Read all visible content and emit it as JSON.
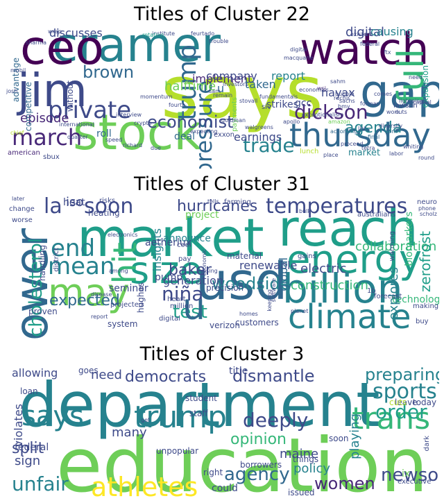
{
  "palette": {
    "c1": "#440154",
    "c2": "#482878",
    "c3": "#3e4a89",
    "c4": "#31688e",
    "c5": "#26828e",
    "c6": "#1f9e89",
    "c7": "#35b779",
    "c8": "#6ece58",
    "c9": "#b5de2b",
    "c10": "#fde725"
  },
  "panels": [
    {
      "title": "Titles of Cluster 22",
      "words": [
        {
          "t": "says",
          "c": "c9"
        },
        {
          "t": "cramer",
          "c": "c5"
        },
        {
          "t": "stock",
          "c": "c8"
        },
        {
          "t": "ceo",
          "c": "c1"
        },
        {
          "t": "watch",
          "c": "c1"
        },
        {
          "t": "jim",
          "c": "c3"
        },
        {
          "t": "gap",
          "c": "c4"
        },
        {
          "t": "thursday",
          "c": "c4"
        },
        {
          "t": "full",
          "c": "c7"
        },
        {
          "t": "march",
          "c": "c2"
        },
        {
          "t": "trump",
          "c": "c4"
        },
        {
          "t": "pressure",
          "c": "c4"
        },
        {
          "t": "private",
          "c": "c3"
        },
        {
          "t": "dickson",
          "c": "c2"
        },
        {
          "t": "trade",
          "c": "c5"
        },
        {
          "t": "economist",
          "c": "c3"
        },
        {
          "t": "brown",
          "c": "c4"
        },
        {
          "t": "discusses",
          "c": "c3"
        },
        {
          "t": "digital",
          "c": "c3"
        },
        {
          "t": "causing",
          "c": "c5"
        },
        {
          "t": "agenda",
          "c": "c5"
        },
        {
          "t": "episode",
          "c": "c2"
        },
        {
          "t": "halftime",
          "c": "c8"
        },
        {
          "t": "report",
          "c": "c5"
        },
        {
          "t": "implement",
          "c": "c2"
        },
        {
          "t": "company",
          "c": "c3"
        },
        {
          "t": "taken",
          "c": "c4"
        },
        {
          "t": "earnings",
          "c": "c3"
        },
        {
          "t": "roll",
          "c": "c4"
        },
        {
          "t": "deal",
          "c": "c4"
        },
        {
          "t": "nayax",
          "c": "c3"
        },
        {
          "t": "gcc",
          "c": "c3"
        },
        {
          "t": "strikes",
          "c": "c3"
        },
        {
          "t": "market",
          "c": "c5"
        },
        {
          "t": "competitive",
          "c": "c4"
        },
        {
          "t": "advantage",
          "c": "c4"
        },
        {
          "t": "without",
          "c": "c3"
        },
        {
          "t": "expansion",
          "c": "c6"
        },
        {
          "t": "payments",
          "c": "c8"
        },
        {
          "t": "sachs",
          "c": "c3"
        },
        {
          "t": "according",
          "c": "c4"
        },
        {
          "t": "final",
          "c": "c4"
        },
        {
          "t": "com",
          "c": "c4"
        },
        {
          "t": "u",
          "c": "c4"
        },
        {
          "t": "wsj",
          "c": "c2"
        },
        {
          "t": "slv",
          "c": "c3"
        },
        {
          "t": "bmy",
          "c": "c3"
        },
        {
          "t": "american",
          "c": "c2"
        },
        {
          "t": "sbux",
          "c": "c3"
        },
        {
          "t": "quarter",
          "c": "c3"
        },
        {
          "t": "exxon",
          "c": "c3"
        },
        {
          "t": "expecting",
          "c": "c3"
        },
        {
          "t": "lunch",
          "c": "c9"
        },
        {
          "t": "place",
          "c": "c3"
        },
        {
          "t": "diversify",
          "c": "c3"
        },
        {
          "t": "whiting",
          "c": "c3"
        },
        {
          "t": "wrap",
          "c": "c3"
        },
        {
          "t": "sharma",
          "c": "c3"
        },
        {
          "t": "josh",
          "c": "c3"
        },
        {
          "t": "mobil",
          "c": "c3"
        },
        {
          "t": "chief",
          "c": "c9"
        },
        {
          "t": "international",
          "c": "c3"
        },
        {
          "t": "interview",
          "c": "c3"
        },
        {
          "t": "speed",
          "c": "c3"
        },
        {
          "t": "richard",
          "c": "c3"
        },
        {
          "t": "due",
          "c": "c3"
        },
        {
          "t": "goldman",
          "c": "c3"
        },
        {
          "t": "momentum",
          "c": "c3"
        },
        {
          "t": "fourth",
          "c": "c3"
        },
        {
          "t": "remain",
          "c": "c3"
        },
        {
          "t": "feurtado",
          "c": "c3"
        },
        {
          "t": "institute",
          "c": "c3"
        },
        {
          "t": "rotation",
          "c": "c6"
        },
        {
          "t": "trouble",
          "c": "c3"
        },
        {
          "t": "stovall",
          "c": "c3"
        },
        {
          "t": "sam",
          "c": "c3"
        },
        {
          "t": "investors",
          "c": "c3"
        },
        {
          "t": "macquarie",
          "c": "c3"
        },
        {
          "t": "digital",
          "c": "c3"
        },
        {
          "t": "economics",
          "c": "c3"
        },
        {
          "t": "bubble",
          "c": "c3"
        },
        {
          "t": "ruchir",
          "c": "c3"
        },
        {
          "t": "sahm",
          "c": "c3"
        },
        {
          "t": "federal",
          "c": "c3"
        },
        {
          "t": "existent",
          "c": "c3"
        },
        {
          "t": "apollo",
          "c": "c3"
        },
        {
          "t": "exceptionalism",
          "c": "c3"
        },
        {
          "t": "amazon",
          "c": "c8"
        },
        {
          "t": "list",
          "c": "c3"
        },
        {
          "t": "forman",
          "c": "c3"
        },
        {
          "t": "capital",
          "c": "c3"
        },
        {
          "t": "lawson",
          "c": "c3"
        },
        {
          "t": "work",
          "c": "c3"
        },
        {
          "t": "cuts",
          "c": "c3"
        },
        {
          "t": "comes",
          "c": "c3"
        },
        {
          "t": "fundamentals",
          "c": "c3"
        },
        {
          "t": "crypto",
          "c": "c3"
        },
        {
          "t": "walgreens",
          "c": "c3"
        },
        {
          "t": "tetra",
          "c": "c3"
        },
        {
          "t": "round",
          "c": "c3"
        },
        {
          "t": "proceed",
          "c": "c3"
        },
        {
          "t": "labor",
          "c": "c3"
        },
        {
          "t": "lightning",
          "c": "c3"
        },
        {
          "t": "need",
          "c": "c3"
        },
        {
          "t": "ftx",
          "c": "c3"
        },
        {
          "t": "china",
          "c": "c3"
        }
      ]
    },
    {
      "title": "Titles of Cluster 31",
      "words": [
        {
          "t": "market",
          "c": "c6"
        },
        {
          "t": "reach",
          "c": "c6"
        },
        {
          "t": "usd",
          "c": "c4"
        },
        {
          "t": "power",
          "c": "c4"
        },
        {
          "t": "energy",
          "c": "c6"
        },
        {
          "t": "billion",
          "c": "c5"
        },
        {
          "t": "climate",
          "c": "c5"
        },
        {
          "t": "size",
          "c": "c6"
        },
        {
          "t": "may",
          "c": "c8"
        },
        {
          "t": "hit",
          "c": "c7"
        },
        {
          "t": "temperatures",
          "c": "c3"
        },
        {
          "t": "soon",
          "c": "c3"
        },
        {
          "t": "la",
          "c": "c3"
        },
        {
          "t": "hurricanes",
          "c": "c3"
        },
        {
          "t": "end",
          "c": "c5"
        },
        {
          "t": "mean",
          "c": "c5"
        },
        {
          "t": "niña",
          "c": "c3"
        },
        {
          "t": "cholesterol",
          "c": "c6"
        },
        {
          "t": "expected",
          "c": "c4"
        },
        {
          "t": "test",
          "c": "c6"
        },
        {
          "t": "woodside",
          "c": "c5"
        },
        {
          "t": "baker",
          "c": "c3"
        },
        {
          "t": "u",
          "c": "c4"
        },
        {
          "t": "collaboration",
          "c": "c7"
        },
        {
          "t": "electric",
          "c": "c3"
        },
        {
          "t": "construction",
          "c": "c7"
        },
        {
          "t": "explores",
          "c": "c5"
        },
        {
          "t": "renewable",
          "c": "c3"
        },
        {
          "t": "material",
          "c": "c3"
        },
        {
          "t": "generation",
          "c": "c3"
        },
        {
          "t": "pump",
          "c": "c3"
        },
        {
          "t": "insights",
          "c": "c5"
        },
        {
          "t": "global",
          "c": "c4"
        },
        {
          "t": "announce",
          "c": "c5"
        },
        {
          "t": "heat",
          "c": "c3"
        },
        {
          "t": "project",
          "c": "c8"
        },
        {
          "t": "iso",
          "c": "c3"
        },
        {
          "t": "zerofrost",
          "c": "c6"
        },
        {
          "t": "biomarkers",
          "c": "c7"
        },
        {
          "t": "technology",
          "c": "c7"
        },
        {
          "t": "aetherlux",
          "c": "c3"
        },
        {
          "t": "seminar",
          "c": "c3"
        },
        {
          "t": "hughes",
          "c": "c3"
        },
        {
          "t": "precision",
          "c": "c3"
        },
        {
          "t": "proven",
          "c": "c3"
        },
        {
          "t": "system",
          "c": "c3"
        },
        {
          "t": "digital",
          "c": "c3"
        },
        {
          "t": "verizon",
          "c": "c3"
        },
        {
          "t": "customers",
          "c": "c3"
        },
        {
          "t": "forecast",
          "c": "c3"
        },
        {
          "t": "making",
          "c": "c3"
        },
        {
          "t": "buy",
          "c": "c3"
        },
        {
          "t": "1b",
          "c": "c3"
        },
        {
          "t": "million",
          "c": "c3"
        },
        {
          "t": "projected",
          "c": "c3"
        },
        {
          "t": "heart",
          "c": "c3"
        },
        {
          "t": "handling",
          "c": "c3"
        },
        {
          "t": "district",
          "c": "c3"
        },
        {
          "t": "heating",
          "c": "c3"
        },
        {
          "t": "electronics",
          "c": "c3"
        },
        {
          "t": "risks",
          "c": "c3"
        },
        {
          "t": "later",
          "c": "c3"
        },
        {
          "t": "change",
          "c": "c3"
        },
        {
          "t": "worse",
          "c": "c3"
        },
        {
          "t": "tells",
          "c": "c3"
        },
        {
          "t": "farming",
          "c": "c3"
        },
        {
          "t": "bulk",
          "c": "c3"
        },
        {
          "t": "australians",
          "c": "c3"
        },
        {
          "t": "neuro",
          "c": "c3"
        },
        {
          "t": "phone",
          "c": "c3"
        },
        {
          "t": "scholz",
          "c": "c3"
        },
        {
          "t": "warming",
          "c": "c3"
        },
        {
          "t": "gains",
          "c": "c3"
        },
        {
          "t": "missing",
          "c": "c3"
        },
        {
          "t": "cool",
          "c": "c3"
        },
        {
          "t": "among",
          "c": "c3"
        },
        {
          "t": "pay",
          "c": "c3"
        },
        {
          "t": "disease",
          "c": "c3"
        },
        {
          "t": "report",
          "c": "c3"
        },
        {
          "t": "software",
          "c": "c3"
        },
        {
          "t": "planet",
          "c": "c3"
        },
        {
          "t": "homes",
          "c": "c3"
        },
        {
          "t": "keeping",
          "c": "c3"
        },
        {
          "t": "economic",
          "c": "c3"
        }
      ]
    },
    {
      "title": "Titles of Cluster 3",
      "words": [
        {
          "t": "education",
          "c": "c8"
        },
        {
          "t": "department",
          "c": "c5"
        },
        {
          "t": "trump",
          "c": "c5"
        },
        {
          "t": "says",
          "c": "c5"
        },
        {
          "t": "trans",
          "c": "c7"
        },
        {
          "t": "sports",
          "c": "c5"
        },
        {
          "t": "athletes",
          "c": "c10"
        },
        {
          "t": "agency",
          "c": "c4"
        },
        {
          "t": "women",
          "c": "c2"
        },
        {
          "t": "newsom",
          "c": "c3"
        },
        {
          "t": "unfair",
          "c": "c5"
        },
        {
          "t": "deeply",
          "c": "c3"
        },
        {
          "t": "order",
          "c": "c6"
        },
        {
          "t": "preparing",
          "c": "c5"
        },
        {
          "t": "democrats",
          "c": "c3"
        },
        {
          "t": "dismantle",
          "c": "c3"
        },
        {
          "t": "need",
          "c": "c3"
        },
        {
          "t": "allowing",
          "c": "c3"
        },
        {
          "t": "split",
          "c": "c3"
        },
        {
          "t": "sign",
          "c": "c3"
        },
        {
          "t": "federal",
          "c": "c3"
        },
        {
          "t": "opinion",
          "c": "c7"
        },
        {
          "t": "playing",
          "c": "c5"
        },
        {
          "t": "policy",
          "c": "c5"
        },
        {
          "t": "maine",
          "c": "c3"
        },
        {
          "t": "many",
          "c": "c3"
        },
        {
          "t": "title",
          "c": "c3"
        },
        {
          "t": "violates",
          "c": "c3"
        },
        {
          "t": "loan",
          "c": "c3"
        },
        {
          "t": "goes",
          "c": "c3"
        },
        {
          "t": "student",
          "c": "c3"
        },
        {
          "t": "staff",
          "c": "c3"
        },
        {
          "t": "unpopular",
          "c": "c3"
        },
        {
          "t": "soon",
          "c": "c3"
        },
        {
          "t": "things",
          "c": "c3"
        },
        {
          "t": "ix",
          "c": "c8"
        },
        {
          "t": "borrowers",
          "c": "c3"
        },
        {
          "t": "right",
          "c": "c3"
        },
        {
          "t": "could",
          "c": "c3"
        },
        {
          "t": "executive",
          "c": "c3"
        },
        {
          "t": "issued",
          "c": "c3"
        },
        {
          "t": "leave",
          "c": "c3"
        },
        {
          "t": "cuts",
          "c": "c9"
        },
        {
          "t": "today",
          "c": "c3"
        },
        {
          "t": "get",
          "c": "c3"
        },
        {
          "t": "dark",
          "c": "c3"
        }
      ]
    }
  ]
}
